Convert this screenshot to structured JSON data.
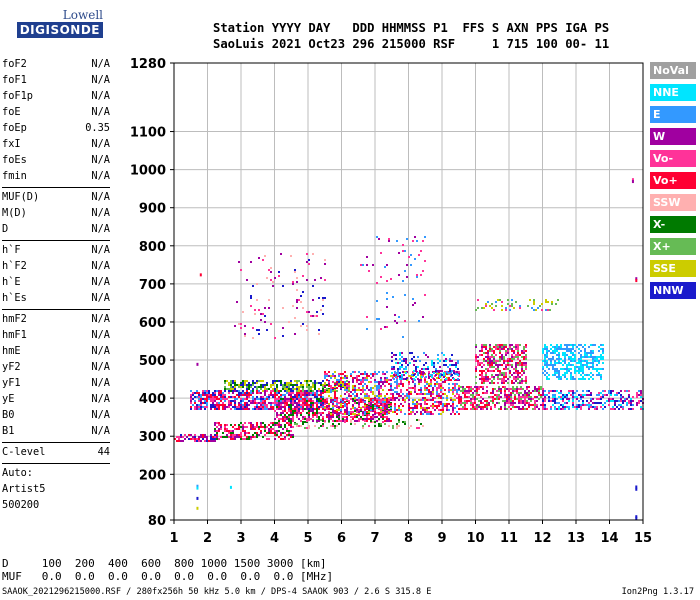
{
  "logo": {
    "line1": "Lowell",
    "line2": "DIGISONDE"
  },
  "header": {
    "line1": "Station YYYY DAY   DDD HHMMSS P1  FFS S AXN PPS IGA PS",
    "line2": "SaoLuis 2021 Oct23 296 215000 RSF     1 715 100 00- 11"
  },
  "params": [
    {
      "name": "foF2",
      "value": "N/A"
    },
    {
      "name": "foF1",
      "value": "N/A"
    },
    {
      "name": "foF1p",
      "value": "N/A"
    },
    {
      "name": "foE",
      "value": "N/A"
    },
    {
      "name": "foEp",
      "value": "0.35"
    },
    {
      "name": "fxI",
      "value": "N/A"
    },
    {
      "name": "foEs",
      "value": "N/A"
    },
    {
      "name": "fmin",
      "value": "N/A"
    },
    {
      "sep": true
    },
    {
      "name": "MUF(D)",
      "value": "N/A"
    },
    {
      "name": "M(D)",
      "value": "N/A"
    },
    {
      "name": "D",
      "value": "N/A"
    },
    {
      "sep": true
    },
    {
      "name": "h`F",
      "value": "N/A"
    },
    {
      "name": "h`F2",
      "value": "N/A"
    },
    {
      "name": "h`E",
      "value": "N/A"
    },
    {
      "name": "h`Es",
      "value": "N/A"
    },
    {
      "sep": true
    },
    {
      "name": "hmF2",
      "value": "N/A"
    },
    {
      "name": "hmF1",
      "value": "N/A"
    },
    {
      "name": "hmE",
      "value": "N/A"
    },
    {
      "name": "yF2",
      "value": "N/A"
    },
    {
      "name": "yF1",
      "value": "N/A"
    },
    {
      "name": "yE",
      "value": "N/A"
    },
    {
      "name": "B0",
      "value": "N/A"
    },
    {
      "name": "B1",
      "value": "N/A"
    },
    {
      "sep": true
    },
    {
      "name": "C-level",
      "value": "44"
    },
    {
      "sep": true
    },
    {
      "name": "Auto:",
      "value": ""
    },
    {
      "name": "Artist5",
      "value": ""
    },
    {
      "name": "500200",
      "value": ""
    }
  ],
  "footer": {
    "d_row": "D     100  200  400  600  800 1000 1500 3000 [km]",
    "muf_row": "MUF   0.0  0.0  0.0  0.0  0.0  0.0  0.0  0.0 [MHz]",
    "info": "SAAOK_2021296215000.RSF / 280fx256h 50 kHz 5.0 km / DPS-4 SAAOK 903 / 2.6 S 315.8 E",
    "version": "Ion2Png 1.3.17"
  },
  "legend": [
    {
      "label": "NoVal",
      "color": "#a0a0a0"
    },
    {
      "label": "NNE",
      "color": "#00e5ff"
    },
    {
      "label": "E",
      "color": "#3399ff"
    },
    {
      "label": "W",
      "color": "#a000a0"
    },
    {
      "label": "Vo-",
      "color": "#ff3399"
    },
    {
      "label": "Vo+",
      "color": "#ff0033"
    },
    {
      "label": "SSW",
      "color": "#ffb0b0"
    },
    {
      "label": "X-",
      "color": "#007a00"
    },
    {
      "label": "X+",
      "color": "#66bb55"
    },
    {
      "label": "SSE",
      "color": "#cccc00"
    },
    {
      "label": "NNW",
      "color": "#1a1acc"
    }
  ],
  "chart_data": {
    "type": "scatter",
    "title": "",
    "xlabel": "",
    "ylabel": "",
    "xlim": [
      1,
      15
    ],
    "ylim": [
      80,
      1280
    ],
    "x_ticks": [
      1,
      2,
      3,
      4,
      5,
      6,
      7,
      8,
      9,
      10,
      11,
      12,
      13,
      14,
      15
    ],
    "y_ticks": [
      80,
      200,
      300,
      400,
      500,
      600,
      700,
      800,
      900,
      1000,
      1100,
      1280
    ],
    "grid": true,
    "legend_position": "right",
    "clusters": [
      {
        "x": [
          1.0,
          2.2
        ],
        "y": [
          285,
          305
        ],
        "colors": [
          "#ff0033",
          "#ff3399",
          "#a000a0",
          "#1a1acc"
        ],
        "density": 0.55
      },
      {
        "x": [
          2.2,
          4.6
        ],
        "y": [
          295,
          335
        ],
        "colors": [
          "#ff0033",
          "#ff3399",
          "#007a00",
          "#a000a0"
        ],
        "density": 0.5
      },
      {
        "x": [
          4.6,
          8.5
        ],
        "y": [
          320,
          345
        ],
        "colors": [
          "#66bb55",
          "#007a00",
          "#ff3399",
          "#ffb0b0"
        ],
        "density": 0.25
      },
      {
        "x": [
          1.5,
          5.5
        ],
        "y": [
          370,
          420
        ],
        "colors": [
          "#1a1acc",
          "#a000a0",
          "#3399ff",
          "#ff3399",
          "#ff0033"
        ],
        "density": 0.7
      },
      {
        "x": [
          2.5,
          6.2
        ],
        "y": [
          420,
          445
        ],
        "colors": [
          "#cccc00",
          "#66bb55",
          "#007a00",
          "#1a1acc"
        ],
        "density": 0.55
      },
      {
        "x": [
          4.0,
          7.5
        ],
        "y": [
          340,
          400
        ],
        "colors": [
          "#ff0033",
          "#ff3399",
          "#a000a0",
          "#007a00"
        ],
        "density": 0.55
      },
      {
        "x": [
          5.5,
          9.5
        ],
        "y": [
          360,
          470
        ],
        "colors": [
          "#ff3399",
          "#ff0033",
          "#a000a0",
          "#cccc00",
          "#3399ff"
        ],
        "density": 0.45
      },
      {
        "x": [
          7.5,
          9.5
        ],
        "y": [
          450,
          520
        ],
        "colors": [
          "#3399ff",
          "#00e5ff",
          "#a000a0",
          "#1a1acc"
        ],
        "density": 0.35
      },
      {
        "x": [
          9.5,
          12.0
        ],
        "y": [
          370,
          430
        ],
        "colors": [
          "#ff0033",
          "#ff3399",
          "#a000a0",
          "#66bb55"
        ],
        "density": 0.55
      },
      {
        "x": [
          10.0,
          11.5
        ],
        "y": [
          440,
          540
        ],
        "colors": [
          "#a000a0",
          "#ff3399",
          "#ff0033",
          "#66bb55"
        ],
        "density": 0.6
      },
      {
        "x": [
          12.0,
          13.8
        ],
        "y": [
          450,
          540
        ],
        "colors": [
          "#00e5ff",
          "#3399ff"
        ],
        "density": 0.5
      },
      {
        "x": [
          12.0,
          15.0
        ],
        "y": [
          370,
          420
        ],
        "colors": [
          "#00e5ff",
          "#a000a0",
          "#ff3399",
          "#3399ff",
          "#1a1acc"
        ],
        "density": 0.45
      },
      {
        "x": [
          10.0,
          12.5
        ],
        "y": [
          630,
          660
        ],
        "colors": [
          "#cccc00",
          "#66bb55",
          "#ff3399",
          "#3399ff"
        ],
        "density": 0.2
      },
      {
        "x": [
          2.8,
          5.5
        ],
        "y": [
          560,
          780
        ],
        "colors": [
          "#a000a0",
          "#1a1acc",
          "#ff3399",
          "#ffb0b0"
        ],
        "density": 0.05
      },
      {
        "x": [
          6.5,
          8.5
        ],
        "y": [
          560,
          830
        ],
        "colors": [
          "#a000a0",
          "#ff3399",
          "#3399ff"
        ],
        "density": 0.04
      }
    ],
    "points": [
      {
        "x": 1.8,
        "y": 725,
        "color": "#ff0033"
      },
      {
        "x": 1.7,
        "y": 490,
        "color": "#a000a0"
      },
      {
        "x": 1.7,
        "y": 170,
        "color": "#3399ff"
      },
      {
        "x": 1.7,
        "y": 165,
        "color": "#00e5ff"
      },
      {
        "x": 1.7,
        "y": 138,
        "color": "#1a1acc"
      },
      {
        "x": 1.7,
        "y": 112,
        "color": "#cccc00"
      },
      {
        "x": 2.7,
        "y": 167,
        "color": "#00e5ff"
      },
      {
        "x": 14.7,
        "y": 975,
        "color": "#ff3399"
      },
      {
        "x": 14.7,
        "y": 970,
        "color": "#a000a0"
      },
      {
        "x": 14.8,
        "y": 715,
        "color": "#a000a0"
      },
      {
        "x": 14.8,
        "y": 710,
        "color": "#ff0033"
      },
      {
        "x": 14.8,
        "y": 168,
        "color": "#1a1acc"
      },
      {
        "x": 14.8,
        "y": 162,
        "color": "#1a1acc"
      },
      {
        "x": 14.8,
        "y": 90,
        "color": "#1a1acc"
      },
      {
        "x": 14.8,
        "y": 86,
        "color": "#1a1acc"
      }
    ]
  }
}
